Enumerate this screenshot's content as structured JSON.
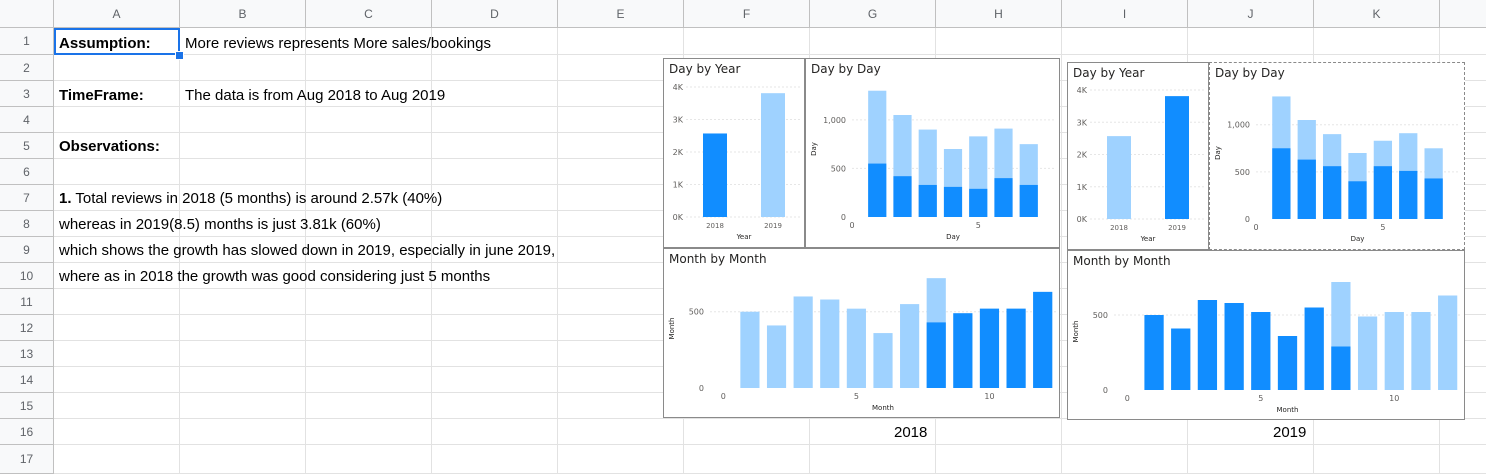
{
  "columns": [
    "A",
    "B",
    "C",
    "D",
    "E",
    "F",
    "G",
    "H",
    "I",
    "J",
    "K"
  ],
  "rows": [
    "1",
    "2",
    "3",
    "4",
    "5",
    "6",
    "7",
    "8",
    "9",
    "10",
    "11",
    "12",
    "13",
    "14",
    "15",
    "16",
    "17"
  ],
  "cells": {
    "a1": "Assumption:",
    "b1": "More reviews represents More sales/bookings",
    "a3": "TimeFrame:",
    "b3": "The data is from Aug 2018 to Aug 2019",
    "a5": "Observations:",
    "a7_num": "1.",
    "a7": " Total reviews in 2018 (5 months) is around 2.57k  (40%)",
    "a8": "whereas in 2019(8.5) months is just 3.81k (60%)",
    "a9": "which shows the growth has slowed down in 2019, especially in june 2019,",
    "a10": "where as in 2018 the growth was good considering just 5 months"
  },
  "captions": {
    "left": "2018",
    "right": "2019"
  },
  "colors": {
    "highlight": "#118dff",
    "muted": "#9fd2ff",
    "grid": "#e6e6e6",
    "axis_text": "#605e5c"
  },
  "chart_data": [
    {
      "type": "bar",
      "dashboard": "2018",
      "title": "Day by Year",
      "xlabel": "Year",
      "ylabel": "",
      "categories": [
        "2018",
        "2019"
      ],
      "values": [
        2570,
        3810
      ],
      "highlighted": [
        true,
        false
      ],
      "ylim": [
        0,
        4000
      ],
      "yticks": [
        "0K",
        "1K",
        "2K",
        "3K",
        "4K"
      ],
      "grid": true
    },
    {
      "type": "bar",
      "dashboard": "2018",
      "title": "Day by Day",
      "xlabel": "Day",
      "ylabel": "Day",
      "x": [
        1,
        2,
        3,
        4,
        5,
        6,
        7
      ],
      "totals": [
        1300,
        1050,
        900,
        700,
        830,
        910,
        750
      ],
      "highlighted": [
        550,
        420,
        330,
        310,
        290,
        400,
        330
      ],
      "xlim": [
        0,
        8
      ],
      "xticks": [
        "0",
        "5"
      ],
      "ylim": [
        0,
        1400
      ],
      "yticks": [
        "0",
        "500",
        "1,000"
      ],
      "grid": true
    },
    {
      "type": "bar",
      "dashboard": "2018",
      "title": "Month by Month",
      "xlabel": "Month",
      "ylabel": "Month",
      "x": [
        1,
        2,
        3,
        4,
        5,
        6,
        7,
        8,
        9,
        10,
        11,
        12
      ],
      "totals": [
        500,
        410,
        600,
        580,
        520,
        360,
        550,
        720,
        490,
        520,
        520,
        630
      ],
      "highlighted": [
        0,
        0,
        0,
        0,
        0,
        0,
        0,
        430,
        490,
        520,
        520,
        630
      ],
      "xlim": [
        -0.5,
        12.5
      ],
      "xticks": [
        "0",
        "5",
        "10"
      ],
      "ylim": [
        0,
        780
      ],
      "yticks": [
        "0",
        "500"
      ],
      "grid": true
    },
    {
      "type": "bar",
      "dashboard": "2019",
      "title": "Day by Year",
      "xlabel": "Year",
      "ylabel": "",
      "categories": [
        "2018",
        "2019"
      ],
      "values": [
        2570,
        3810
      ],
      "highlighted": [
        false,
        true
      ],
      "ylim": [
        0,
        4000
      ],
      "yticks": [
        "0K",
        "1K",
        "2K",
        "3K",
        "4K"
      ],
      "grid": true
    },
    {
      "type": "bar",
      "dashboard": "2019",
      "title": "Day by Day",
      "xlabel": "Day",
      "ylabel": "Day",
      "x": [
        1,
        2,
        3,
        4,
        5,
        6,
        7
      ],
      "totals": [
        1300,
        1050,
        900,
        700,
        830,
        910,
        750
      ],
      "highlighted": [
        750,
        630,
        560,
        400,
        560,
        510,
        430
      ],
      "xlim": [
        0,
        8
      ],
      "xticks": [
        "0",
        "5"
      ],
      "ylim": [
        0,
        1400
      ],
      "yticks": [
        "0",
        "500",
        "1,000"
      ],
      "grid": true
    },
    {
      "type": "bar",
      "dashboard": "2019",
      "title": "Month by Month",
      "xlabel": "Month",
      "ylabel": "Month",
      "x": [
        1,
        2,
        3,
        4,
        5,
        6,
        7,
        8,
        9,
        10,
        11,
        12
      ],
      "totals": [
        500,
        410,
        600,
        580,
        520,
        360,
        550,
        720,
        490,
        520,
        520,
        630
      ],
      "highlighted": [
        500,
        410,
        600,
        580,
        520,
        360,
        550,
        290,
        0,
        0,
        0,
        0
      ],
      "xlim": [
        -0.5,
        12.5
      ],
      "xticks": [
        "0",
        "5",
        "10"
      ],
      "ylim": [
        0,
        780
      ],
      "yticks": [
        "0",
        "500"
      ],
      "grid": true
    }
  ]
}
